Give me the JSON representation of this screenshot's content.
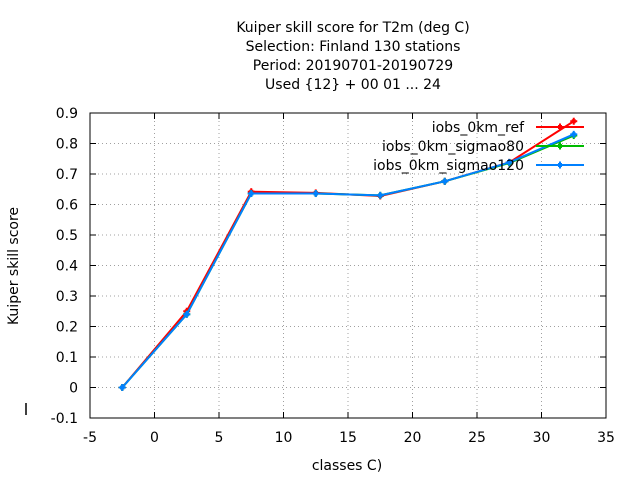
{
  "chart_data": {
    "type": "line",
    "title_lines": [
      "Kuiper skill score  for T2m (deg C)",
      "Selection: Finland    130 stations",
      "Period: 20190701-20190729",
      "Used {12} + 00 01 ... 24"
    ],
    "xlabel": "classes C)",
    "ylabel": "Kuiper skill score",
    "xlim": [
      -5,
      35
    ],
    "ylim": [
      -0.1,
      0.9
    ],
    "xticks": [
      -5,
      0,
      5,
      10,
      15,
      20,
      25,
      30,
      35
    ],
    "yticks": [
      -0.1,
      0,
      0.1,
      0.2,
      0.3,
      0.4,
      0.5,
      0.6,
      0.7,
      0.8,
      0.9
    ],
    "xtick_labels": [
      "-5",
      "0",
      "5",
      "10",
      "15",
      "20",
      "25",
      "30",
      "35"
    ],
    "ytick_labels": [
      "-0.1",
      "0",
      "0.1",
      "0.2",
      "0.3",
      "0.4",
      "0.5",
      "0.6",
      "0.7",
      "0.8",
      "0.9"
    ],
    "grid": true,
    "legend_position": "top-right",
    "x": [
      -2.5,
      2.5,
      7.5,
      12.5,
      17.5,
      22.5,
      27.5,
      32.5
    ],
    "series": [
      {
        "name": "iobs_0km_ref",
        "color": "#ff0000",
        "values": [
          0.0,
          0.25,
          0.642,
          0.638,
          0.628,
          0.676,
          0.738,
          0.873
        ]
      },
      {
        "name": "iobs_0km_sigmao80",
        "color": "#00bb00",
        "values": [
          0.0,
          0.24,
          0.636,
          0.636,
          0.63,
          0.676,
          0.736,
          0.826
        ]
      },
      {
        "name": "iobs_0km_sigmao120",
        "color": "#0080ff",
        "values": [
          0.0,
          0.24,
          0.636,
          0.636,
          0.63,
          0.676,
          0.738,
          0.83
        ]
      }
    ]
  }
}
